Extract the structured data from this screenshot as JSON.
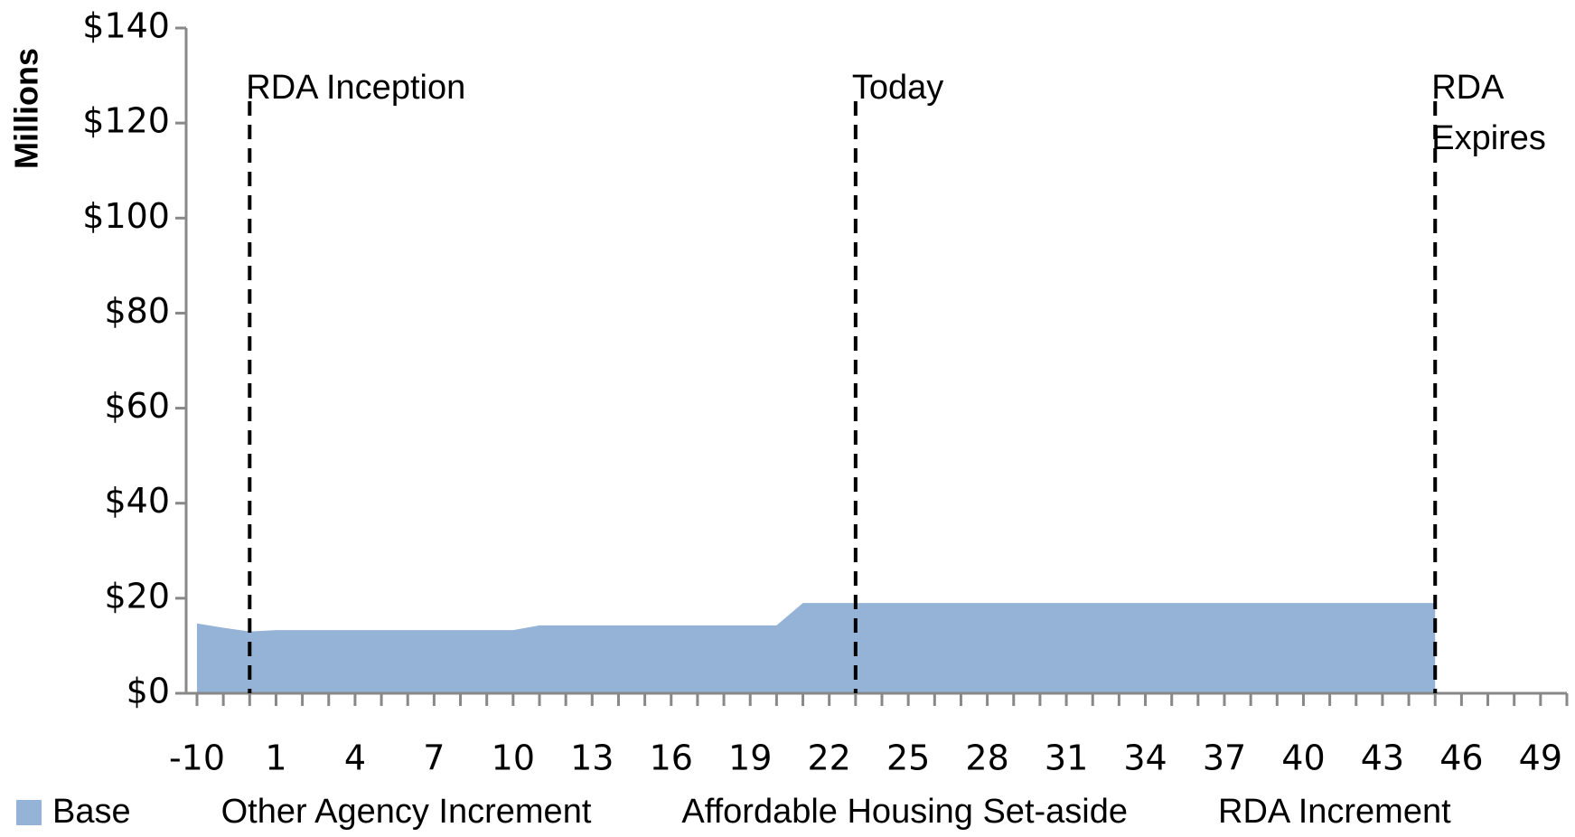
{
  "chart_data": {
    "type": "area",
    "y_label": "Millions",
    "categories": [
      "-10",
      null,
      null,
      "1",
      null,
      null,
      "4",
      null,
      null,
      "7",
      null,
      null,
      "10",
      null,
      null,
      "13",
      null,
      null,
      "16",
      null,
      null,
      "19",
      null,
      null,
      "22",
      null,
      null,
      "25",
      null,
      null,
      "28",
      null,
      null,
      "31",
      null,
      null,
      "34",
      null,
      null,
      "37",
      null,
      null,
      "40",
      null,
      null,
      "43",
      null,
      null,
      "46",
      null,
      null,
      "49",
      null
    ],
    "series": [
      {
        "name": "Base",
        "color": "#95b3d7",
        "values": [
          14.7,
          13.8,
          13,
          13.3,
          13.3,
          13.3,
          13.3,
          13.3,
          13.3,
          13.3,
          13.3,
          13.3,
          13.3,
          14.3,
          14.3,
          14.3,
          14.3,
          14.3,
          14.3,
          14.3,
          14.3,
          14.3,
          14.3,
          19,
          19,
          19,
          19,
          19,
          19,
          19,
          19,
          19,
          19,
          19,
          19,
          19,
          19,
          19,
          19,
          19,
          19,
          19,
          19,
          19,
          19,
          19,
          19,
          19,
          null,
          null,
          null,
          null,
          null
        ]
      },
      {
        "name": "Other Agency Increment",
        "color": "#ffffff",
        "values": [
          null,
          null,
          null,
          null,
          null,
          null,
          null,
          null,
          null,
          null,
          null,
          null,
          null,
          null,
          null,
          null,
          null,
          null,
          null,
          null,
          null,
          null,
          null,
          null,
          null,
          null,
          null,
          null,
          null,
          null,
          null,
          null,
          null,
          null,
          null,
          null,
          null,
          null,
          null,
          null,
          null,
          null,
          null,
          null,
          null,
          null,
          null,
          null,
          null,
          null,
          null,
          null,
          null
        ]
      },
      {
        "name": "Affordable Housing Set-aside",
        "color": "#ffffff",
        "values": [
          null,
          null,
          null,
          null,
          null,
          null,
          null,
          null,
          null,
          null,
          null,
          null,
          null,
          null,
          null,
          null,
          null,
          null,
          null,
          null,
          null,
          null,
          null,
          null,
          null,
          null,
          null,
          null,
          null,
          null,
          null,
          null,
          null,
          null,
          null,
          null,
          null,
          null,
          null,
          null,
          null,
          null,
          null,
          null,
          null,
          null,
          null,
          null,
          null,
          null,
          null,
          null,
          null
        ]
      },
      {
        "name": "RDA Increment",
        "color": "#ffffff",
        "values": [
          null,
          null,
          null,
          null,
          null,
          null,
          null,
          null,
          null,
          null,
          null,
          null,
          null,
          null,
          null,
          null,
          null,
          null,
          null,
          null,
          null,
          null,
          null,
          null,
          null,
          null,
          null,
          null,
          null,
          null,
          null,
          null,
          null,
          null,
          null,
          null,
          null,
          null,
          null,
          null,
          null,
          null,
          null,
          null,
          null,
          null,
          null,
          null,
          null,
          null,
          null,
          null,
          null
        ]
      }
    ],
    "annotations": [
      {
        "text": "RDA Inception"
      },
      {
        "text": "Today"
      },
      {
        "text": "RDA Expires"
      }
    ],
    "ylim": [
      0,
      140
    ],
    "yticks": [
      {
        "value": 0,
        "label": "$0"
      },
      {
        "value": 20,
        "label": "$20"
      },
      {
        "value": 40,
        "label": "$40"
      },
      {
        "value": 60,
        "label": "$60"
      },
      {
        "value": 80,
        "label": "$80"
      },
      {
        "value": 100,
        "label": "$100"
      },
      {
        "value": 120,
        "label": "$120"
      },
      {
        "value": 140,
        "label": "$140"
      }
    ],
    "legend": "bottom"
  }
}
